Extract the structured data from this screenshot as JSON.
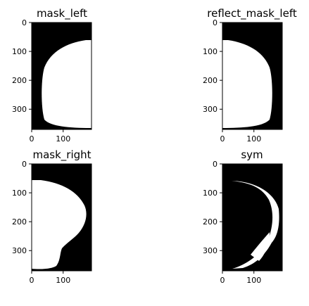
{
  "figure": {
    "background": "#ffffff"
  },
  "chart_data": [
    {
      "type": "image",
      "title": "mask_left",
      "image_width": 190,
      "image_height": 370,
      "x_ticks": [
        0,
        100
      ],
      "y_ticks": [
        0,
        100,
        200,
        300
      ],
      "content": "white region on black: large left-opening half-disc bounded by the right edge",
      "colors": {
        "foreground": "#ffffff",
        "background": "#000000"
      }
    },
    {
      "type": "image",
      "title": "reflect_mask_left",
      "image_width": 190,
      "image_height": 370,
      "x_ticks": [
        0,
        100
      ],
      "y_ticks": [
        0,
        100,
        200,
        300
      ],
      "content": "mirror of mask_left: white half-disc bounded by the left edge",
      "colors": {
        "foreground": "#ffffff",
        "background": "#000000"
      }
    },
    {
      "type": "image",
      "title": "mask_right",
      "image_width": 190,
      "image_height": 370,
      "x_ticks": [
        0,
        100
      ],
      "y_ticks": [
        0,
        100,
        200,
        300
      ],
      "content": "white region on black: half-disc bounded by the left edge with a notch at lower right",
      "colors": {
        "foreground": "#ffffff",
        "background": "#000000"
      }
    },
    {
      "type": "image",
      "title": "sym",
      "image_width": 190,
      "image_height": 370,
      "x_ticks": [
        0,
        100
      ],
      "y_ticks": [
        0,
        100,
        200,
        300
      ],
      "content": "thin white crescent on black (difference between masks)",
      "colors": {
        "foreground": "#ffffff",
        "background": "#000000"
      }
    }
  ]
}
